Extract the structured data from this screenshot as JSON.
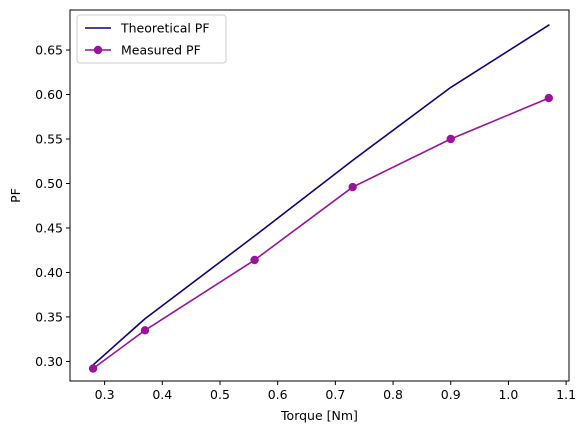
{
  "chart_data": {
    "type": "line",
    "title": "",
    "xlabel": "Torque [Nm]",
    "ylabel": "PF",
    "xlim": [
      0.24,
      1.105
    ],
    "ylim": [
      0.278,
      0.695
    ],
    "xticks": [
      "0.3",
      "0.4",
      "0.5",
      "0.6",
      "0.7",
      "0.8",
      "0.9",
      "1.0",
      "1.1"
    ],
    "yticks": [
      "0.30",
      "0.35",
      "0.40",
      "0.45",
      "0.50",
      "0.55",
      "0.60",
      "0.65"
    ],
    "grid": false,
    "legend_position": "upper-left",
    "series": [
      {
        "name": "Theoretical PF",
        "color": "#10007f",
        "marker": "none",
        "x": [
          0.28,
          0.37,
          0.56,
          0.73,
          0.9,
          1.07
        ],
        "y": [
          0.296,
          0.348,
          0.441,
          0.526,
          0.608,
          0.678
        ]
      },
      {
        "name": "Measured PF",
        "color": "#9a139a",
        "marker": "circle",
        "x": [
          0.28,
          0.37,
          0.56,
          0.73,
          0.9,
          1.07
        ],
        "y": [
          0.292,
          0.335,
          0.414,
          0.496,
          0.55,
          0.596
        ]
      }
    ]
  }
}
